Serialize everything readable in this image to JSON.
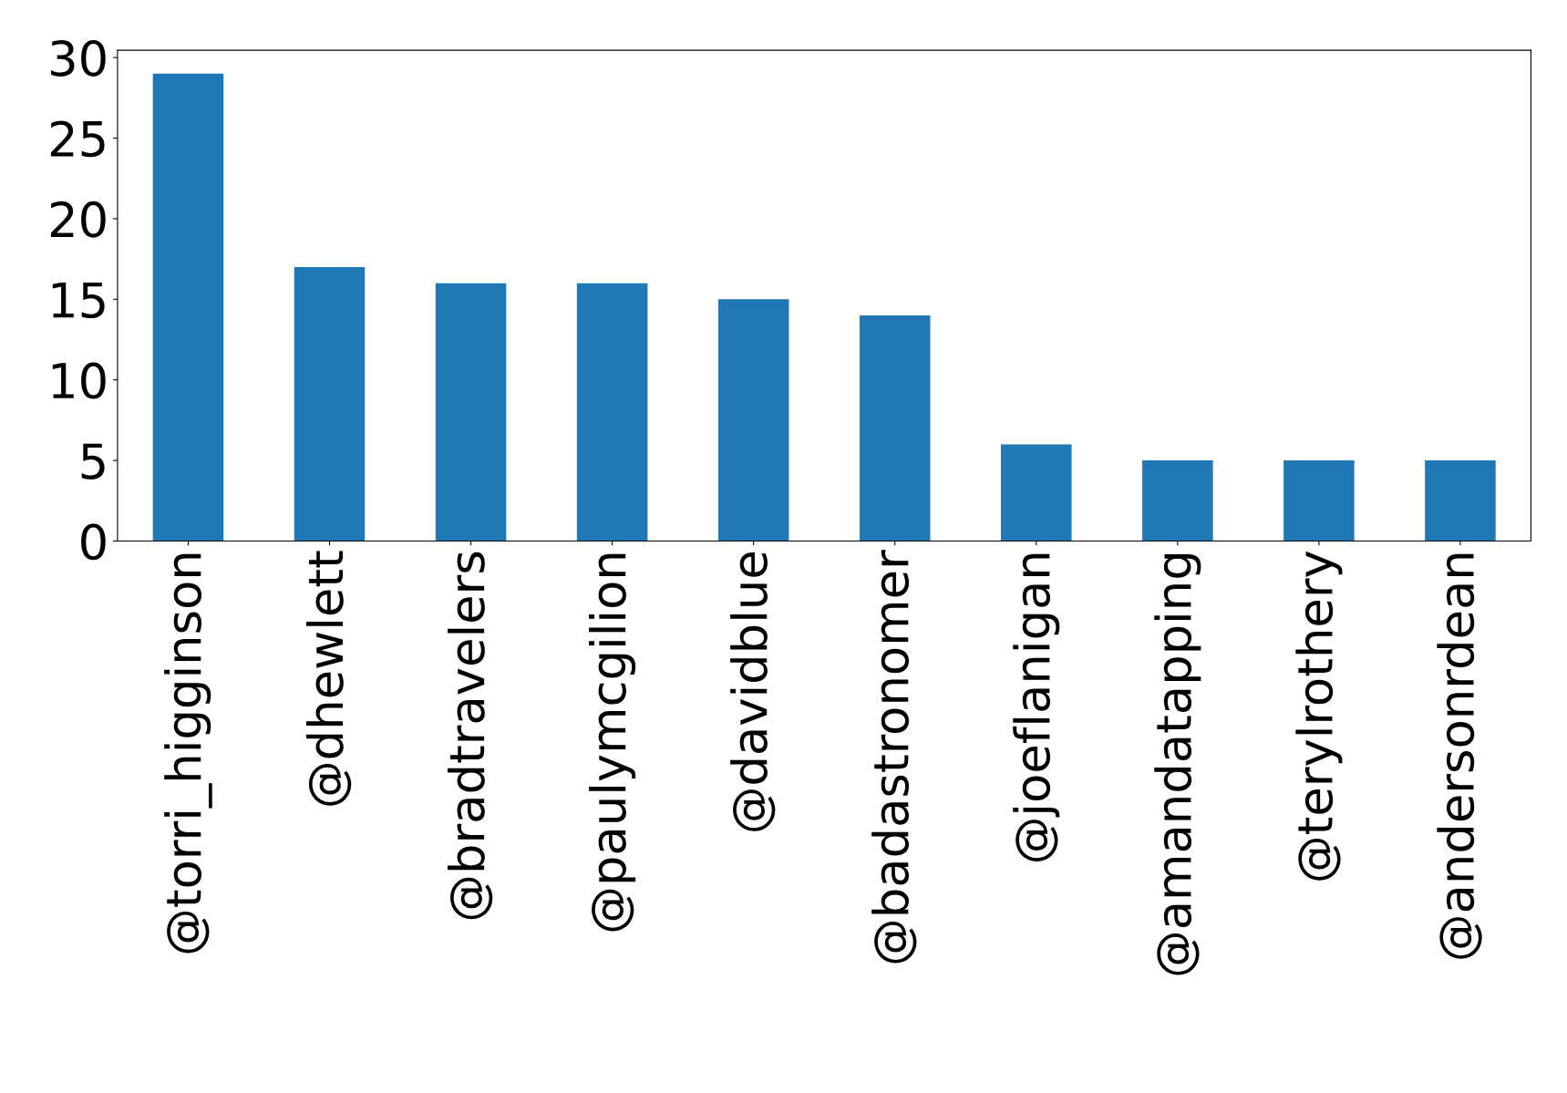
{
  "chart_data": {
    "type": "bar",
    "categories": [
      "@torri_higginson",
      "@dhewlett",
      "@bradtravelers",
      "@paulymcgilion",
      "@davidblue",
      "@badastronomer",
      "@joeflanigan",
      "@amandatapping",
      "@terylrothery",
      "@andersonrdean"
    ],
    "values": [
      29,
      17,
      16,
      16,
      15,
      14,
      6,
      5,
      5,
      5
    ],
    "color": "#1f77b4",
    "ylim": [
      0,
      30.45
    ],
    "yticks": [
      0,
      5,
      10,
      15,
      20,
      25,
      30
    ],
    "grid": false
  }
}
